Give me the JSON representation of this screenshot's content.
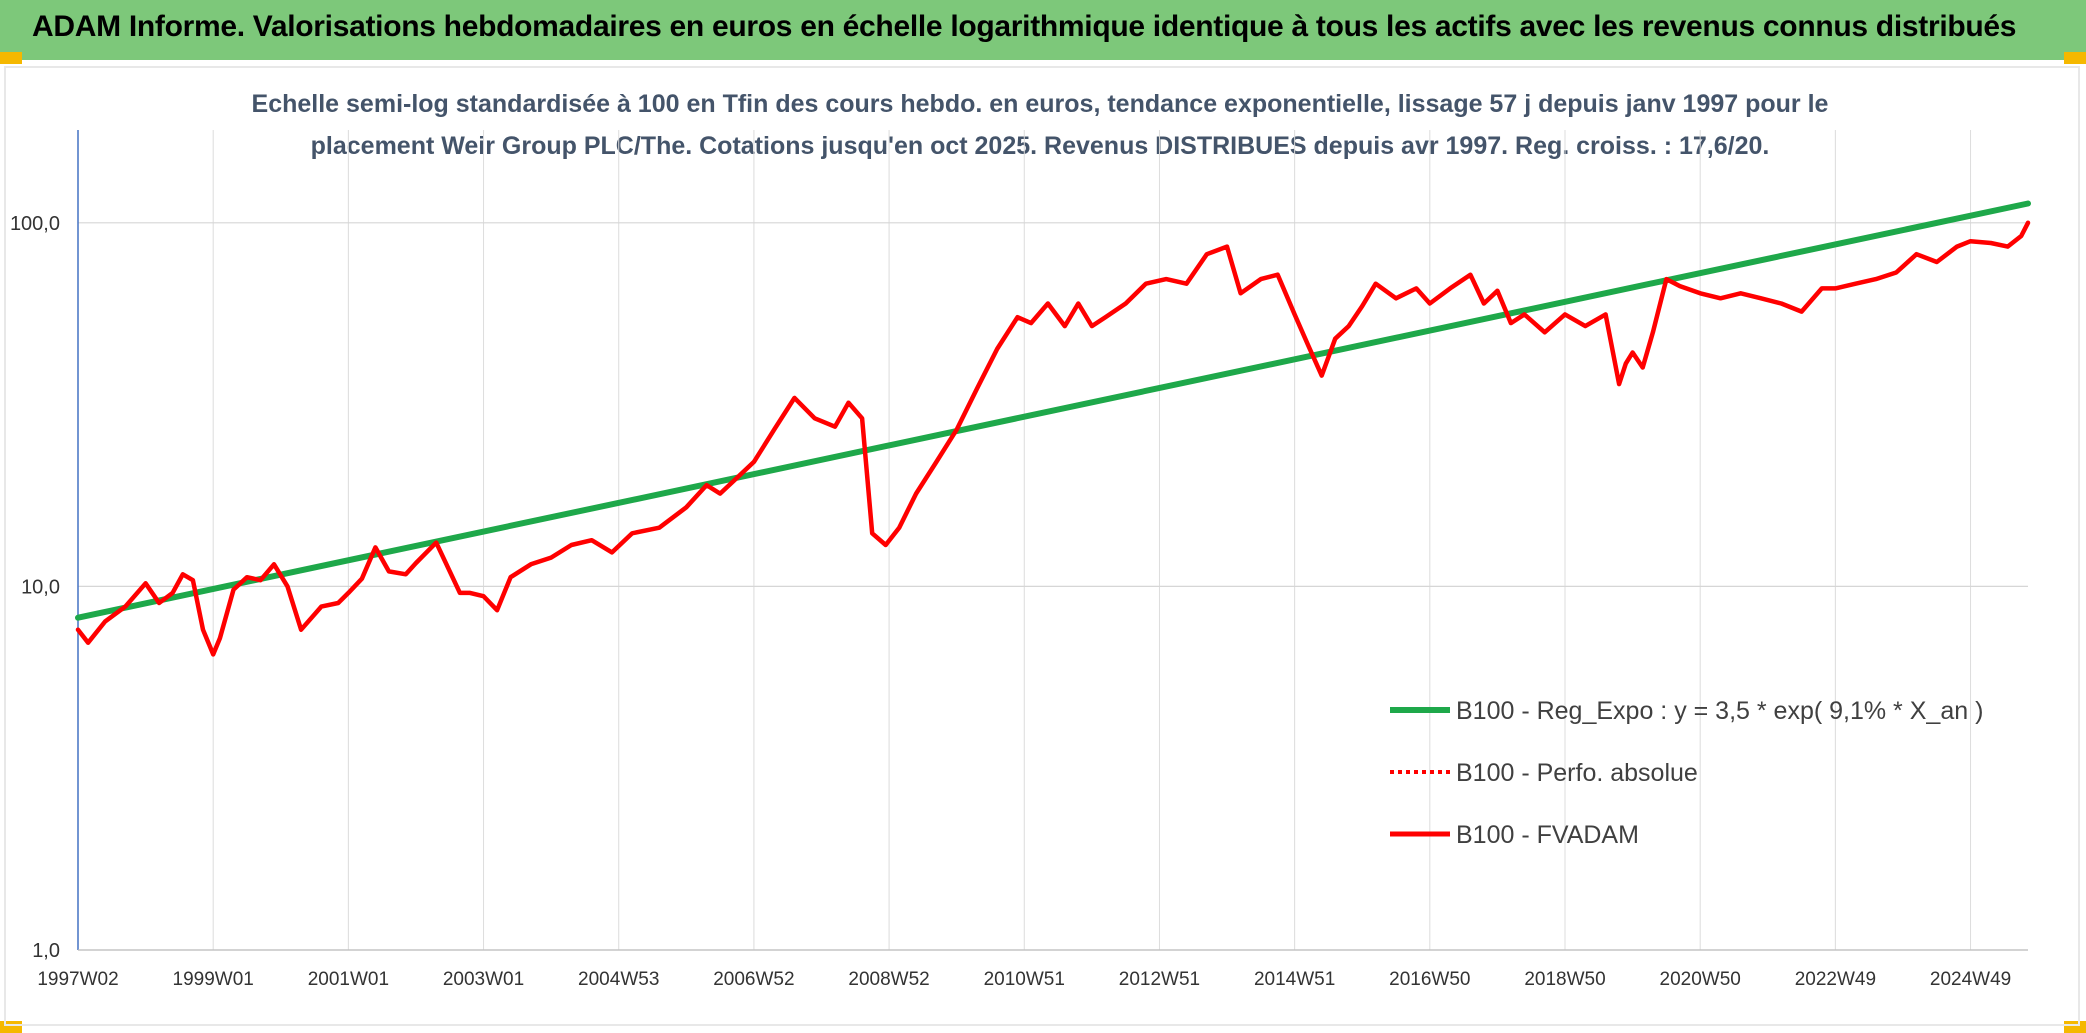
{
  "header": {
    "title": "ADAM Informe. Valorisations hebdomadaires en euros en échelle logarithmique identique à tous les actifs avec les revenus connus distribués",
    "background": "#7dc87a",
    "corner_color": "#f5b800"
  },
  "chart_data": {
    "type": "line",
    "title_line1": "Echelle semi-log standardisée à 100 en Tfin des cours hebdo. en euros, tendance exponentielle, lissage 57 j depuis janv 1997 pour le",
    "title_line2": "placement Weir Group PLC/The. Cotations jusqu'en oct 2025. Revenus DISTRIBUES depuis avr 1997. Reg. croiss. : 17,6/20.",
    "y_scale": "log",
    "ylim": [
      1,
      180
    ],
    "y_ticks": [
      {
        "value": 1,
        "label": "1,0"
      },
      {
        "value": 10,
        "label": "10,0"
      },
      {
        "value": 100,
        "label": "100,0"
      }
    ],
    "xlim": [
      1997.0,
      2025.85
    ],
    "x_ticks": [
      {
        "x": 1997.0,
        "label": "1997W02"
      },
      {
        "x": 1999.0,
        "label": "1999W01"
      },
      {
        "x": 2001.0,
        "label": "2001W01"
      },
      {
        "x": 2003.0,
        "label": "2003W01"
      },
      {
        "x": 2005.0,
        "label": "2004W53"
      },
      {
        "x": 2007.0,
        "label": "2006W52"
      },
      {
        "x": 2009.0,
        "label": "2008W52"
      },
      {
        "x": 2011.0,
        "label": "2010W51"
      },
      {
        "x": 2013.0,
        "label": "2012W51"
      },
      {
        "x": 2015.0,
        "label": "2014W51"
      },
      {
        "x": 2017.0,
        "label": "2016W50"
      },
      {
        "x": 2019.0,
        "label": "2018W50"
      },
      {
        "x": 2021.0,
        "label": "2020W50"
      },
      {
        "x": 2023.0,
        "label": "2022W49"
      },
      {
        "x": 2025.0,
        "label": "2024W49"
      }
    ],
    "grid": true,
    "legend_position": "right",
    "series": [
      {
        "name": "B100 - Reg_Expo : y = 3,5 * exp( 9,1% *  X_an )",
        "color": "#1ea84a",
        "style": "solid",
        "x": [
          1997.0,
          2025.85
        ],
        "y": [
          8.2,
          113
        ]
      },
      {
        "name": "B100 - Perfo. absolue",
        "color": "#ff0000",
        "style": "dotted",
        "x": [],
        "y": []
      },
      {
        "name": "B100 - FVADAM",
        "color": "#ff0000",
        "style": "solid",
        "x": [
          1997.0,
          1997.15,
          1997.4,
          1997.7,
          1998.0,
          1998.2,
          1998.4,
          1998.55,
          1998.7,
          1998.85,
          1999.0,
          1999.1,
          1999.3,
          1999.5,
          1999.7,
          1999.9,
          2000.1,
          2000.3,
          2000.6,
          2000.85,
          2001.0,
          2001.2,
          2001.4,
          2001.6,
          2001.85,
          2002.0,
          2002.3,
          2002.5,
          2002.65,
          2002.8,
          2003.0,
          2003.2,
          2003.4,
          2003.7,
          2004.0,
          2004.3,
          2004.6,
          2004.9,
          2005.2,
          2005.6,
          2006.0,
          2006.3,
          2006.5,
          2006.7,
          2007.0,
          2007.3,
          2007.6,
          2007.9,
          2008.2,
          2008.4,
          2008.6,
          2008.75,
          2008.95,
          2009.15,
          2009.4,
          2009.7,
          2010.0,
          2010.3,
          2010.6,
          2010.9,
          2011.1,
          2011.35,
          2011.6,
          2011.8,
          2012.0,
          2012.2,
          2012.5,
          2012.8,
          2013.1,
          2013.4,
          2013.7,
          2014.0,
          2014.2,
          2014.5,
          2014.75,
          2015.0,
          2015.2,
          2015.4,
          2015.6,
          2015.8,
          2016.0,
          2016.2,
          2016.5,
          2016.8,
          2017.0,
          2017.3,
          2017.6,
          2017.8,
          2018.0,
          2018.2,
          2018.4,
          2018.7,
          2019.0,
          2019.3,
          2019.6,
          2019.8,
          2019.9,
          2020.0,
          2020.15,
          2020.3,
          2020.5,
          2020.7,
          2021.0,
          2021.3,
          2021.6,
          2021.9,
          2022.2,
          2022.5,
          2022.8,
          2023.0,
          2023.3,
          2023.6,
          2023.9,
          2024.2,
          2024.5,
          2024.8,
          2025.0,
          2025.3,
          2025.55,
          2025.75,
          2025.85
        ],
        "y": [
          7.6,
          7.0,
          8.0,
          8.8,
          10.2,
          9.0,
          9.6,
          10.8,
          10.4,
          7.6,
          6.5,
          7.2,
          9.8,
          10.6,
          10.4,
          11.5,
          10.0,
          7.6,
          8.8,
          9.0,
          9.6,
          10.5,
          12.8,
          11.0,
          10.8,
          11.6,
          13.2,
          11.0,
          9.6,
          9.6,
          9.4,
          8.6,
          10.6,
          11.5,
          12.0,
          13.0,
          13.4,
          12.4,
          14.0,
          14.5,
          16.5,
          19.0,
          18.0,
          19.5,
          22.0,
          27.0,
          33.0,
          29.0,
          27.5,
          32.0,
          29.0,
          14.0,
          13.0,
          14.5,
          18.0,
          22.0,
          27.0,
          35.0,
          45.0,
          55.0,
          53.0,
          60.0,
          52.0,
          60.0,
          52.0,
          55.0,
          60.0,
          68.0,
          70.0,
          68.0,
          82.0,
          86.0,
          64.0,
          70.0,
          72.0,
          56.0,
          46.0,
          38.0,
          48.0,
          52.0,
          59.0,
          68.0,
          62.0,
          66.0,
          60.0,
          66.0,
          72.0,
          60.0,
          65.0,
          53.0,
          56.0,
          50.0,
          56.0,
          52.0,
          56.0,
          36.0,
          41.0,
          44.0,
          40.0,
          50.0,
          70.0,
          67.0,
          64.0,
          62.0,
          64.0,
          62.0,
          60.0,
          57.0,
          66.0,
          66.0,
          68.0,
          70.0,
          73.0,
          82.0,
          78.0,
          86.0,
          89.0,
          88.0,
          86.0,
          92.0,
          100.0
        ]
      }
    ]
  }
}
